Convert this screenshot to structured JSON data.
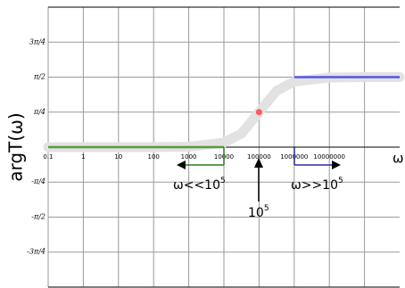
{
  "chart_data": {
    "type": "line",
    "xlog": true,
    "grid": true,
    "ylabel": "argT(ω)",
    "xlabel": "ω",
    "xlim": [
      0.1,
      1000000000
    ],
    "ylim": [
      -3.1416,
      3.1416
    ],
    "xticks": [
      0.1,
      1,
      10,
      100,
      1000,
      10000,
      100000,
      1000000,
      10000000,
      {
        "value": 100000000,
        "label": null
      }
    ],
    "yticks": [
      {
        "value": -2.356,
        "label": "-3π/4"
      },
      {
        "value": -1.571,
        "label": "-π/2"
      },
      {
        "value": -0.785,
        "label": "-π/4"
      },
      {
        "value": 0.785,
        "label": "π/4"
      },
      {
        "value": 1.571,
        "label": "π/2"
      },
      {
        "value": 2.356,
        "label": "3π/4"
      }
    ],
    "series": [
      {
        "color": "#e2e2e2",
        "x": [
          0.1,
          1,
          10,
          100,
          1000,
          10000,
          31623,
          100000,
          316228,
          1000000,
          10000000,
          100000000,
          1000000000
        ],
        "values": [
          0,
          0,
          0,
          0,
          0.01,
          0.1,
          0.306,
          0.785,
          1.265,
          1.471,
          1.561,
          1.57,
          1.571
        ]
      },
      {
        "color": "#5a9a3c",
        "x": [
          0.1,
          10000
        ],
        "values": [
          0,
          0
        ]
      },
      {
        "color": "#5555dd",
        "x": [
          1000000,
          1000000000
        ],
        "values": [
          1.571,
          1.571
        ]
      },
      {
        "color": "#ff5a5a",
        "marker": true,
        "x": [
          100000
        ],
        "values": [
          0.785
        ]
      }
    ],
    "annotations": [
      {
        "text": "ω<<10",
        "sup": "5"
      },
      {
        "text": "ω>>10",
        "sup": "5"
      },
      {
        "text": "10",
        "sup": "5"
      }
    ]
  }
}
